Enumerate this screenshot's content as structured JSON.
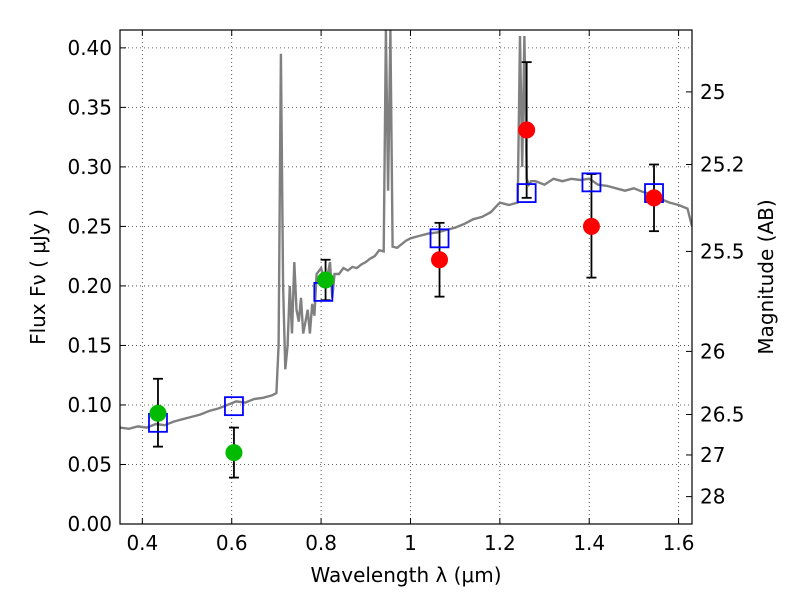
{
  "chart_data": {
    "type": "scatter",
    "xlabel": "Wavelength  λ (μm)",
    "ylabel": "Flux  Fν  ( μJy )",
    "y2label": "Magnitude (AB)",
    "xlim": [
      0.35,
      1.63
    ],
    "ylim": [
      0.0,
      0.415
    ],
    "grid": true,
    "x_ticks": [
      0.4,
      0.6,
      0.8,
      1.0,
      1.2,
      1.4,
      1.6
    ],
    "x_tick_labels": [
      "0.4",
      "0.6",
      "0.8",
      "1",
      "1.2",
      "1.4",
      "1.6"
    ],
    "y_ticks": [
      0.0,
      0.05,
      0.1,
      0.15,
      0.2,
      0.25,
      0.3,
      0.35,
      0.4
    ],
    "y_tick_labels": [
      "0.00",
      "0.05",
      "0.10",
      "0.15",
      "0.20",
      "0.25",
      "0.30",
      "0.35",
      "0.40"
    ],
    "y2_ticks": [
      {
        "label": "25",
        "flux": 0.363
      },
      {
        "label": "25.2",
        "flux": 0.302
      },
      {
        "label": "25.5",
        "flux": 0.229
      },
      {
        "label": "26",
        "flux": 0.145
      },
      {
        "label": "26.5",
        "flux": 0.092
      },
      {
        "label": "27",
        "flux": 0.058
      },
      {
        "label": "28",
        "flux": 0.023
      }
    ],
    "model_spectrum": {
      "color": "#808080",
      "x": [
        0.35,
        0.37,
        0.39,
        0.41,
        0.43,
        0.45,
        0.47,
        0.49,
        0.51,
        0.53,
        0.55,
        0.57,
        0.59,
        0.61,
        0.63,
        0.65,
        0.67,
        0.69,
        0.7,
        0.705,
        0.71,
        0.715,
        0.72,
        0.725,
        0.73,
        0.735,
        0.74,
        0.745,
        0.75,
        0.755,
        0.76,
        0.765,
        0.77,
        0.775,
        0.78,
        0.785,
        0.79,
        0.8,
        0.81,
        0.815,
        0.82,
        0.825,
        0.83,
        0.84,
        0.85,
        0.86,
        0.87,
        0.88,
        0.89,
        0.9,
        0.91,
        0.92,
        0.93,
        0.94,
        0.945,
        0.95,
        0.955,
        0.96,
        0.97,
        0.98,
        0.99,
        1.0,
        1.02,
        1.04,
        1.06,
        1.08,
        1.1,
        1.12,
        1.14,
        1.16,
        1.18,
        1.2,
        1.22,
        1.24,
        1.245,
        1.25,
        1.255,
        1.26,
        1.265,
        1.27,
        1.28,
        1.3,
        1.32,
        1.34,
        1.36,
        1.38,
        1.4,
        1.42,
        1.44,
        1.46,
        1.48,
        1.5,
        1.52,
        1.54,
        1.56,
        1.58,
        1.6,
        1.62,
        1.63
      ],
      "y": [
        0.081,
        0.08,
        0.082,
        0.081,
        0.084,
        0.083,
        0.086,
        0.088,
        0.09,
        0.092,
        0.095,
        0.097,
        0.1,
        0.103,
        0.102,
        0.105,
        0.106,
        0.108,
        0.11,
        0.15,
        0.395,
        0.2,
        0.13,
        0.15,
        0.2,
        0.16,
        0.22,
        0.18,
        0.17,
        0.19,
        0.16,
        0.17,
        0.18,
        0.16,
        0.185,
        0.175,
        0.21,
        0.215,
        0.2,
        0.21,
        0.22,
        0.19,
        0.21,
        0.21,
        0.215,
        0.213,
        0.216,
        0.215,
        0.218,
        0.22,
        0.223,
        0.225,
        0.23,
        0.229,
        0.415,
        0.28,
        0.415,
        0.233,
        0.232,
        0.235,
        0.238,
        0.24,
        0.242,
        0.244,
        0.245,
        0.247,
        0.249,
        0.252,
        0.256,
        0.258,
        0.262,
        0.27,
        0.268,
        0.27,
        0.41,
        0.3,
        0.41,
        0.29,
        0.285,
        0.288,
        0.288,
        0.285,
        0.29,
        0.288,
        0.29,
        0.289,
        0.29,
        0.285,
        0.284,
        0.282,
        0.28,
        0.282,
        0.279,
        0.277,
        0.273,
        0.27,
        0.268,
        0.265,
        0.25
      ]
    },
    "series": [
      {
        "marker": "open-square",
        "color": "#0000ff",
        "points": [
          {
            "x": 0.435,
            "y": 0.085
          },
          {
            "x": 0.605,
            "y": 0.099
          },
          {
            "x": 0.805,
            "y": 0.195
          },
          {
            "x": 1.065,
            "y": 0.24
          },
          {
            "x": 1.26,
            "y": 0.278
          },
          {
            "x": 1.405,
            "y": 0.287
          },
          {
            "x": 1.545,
            "y": 0.278
          }
        ]
      },
      {
        "marker": "filled-circle",
        "color": "#00bb00",
        "points": [
          {
            "x": 0.435,
            "y": 0.093,
            "err": [
              0.065,
              0.122
            ]
          },
          {
            "x": 0.605,
            "y": 0.06,
            "err": [
              0.039,
              0.081
            ]
          },
          {
            "x": 0.81,
            "y": 0.205,
            "err": [
              0.188,
              0.222
            ]
          }
        ]
      },
      {
        "marker": "filled-circle",
        "color": "#ff0000",
        "points": [
          {
            "x": 1.065,
            "y": 0.222,
            "err": [
              0.191,
              0.253
            ]
          },
          {
            "x": 1.26,
            "y": 0.331,
            "err": [
              0.274,
              0.388
            ]
          },
          {
            "x": 1.405,
            "y": 0.25,
            "err": [
              0.207,
              0.294
            ]
          },
          {
            "x": 1.545,
            "y": 0.274,
            "err": [
              0.246,
              0.302
            ]
          }
        ]
      }
    ]
  }
}
